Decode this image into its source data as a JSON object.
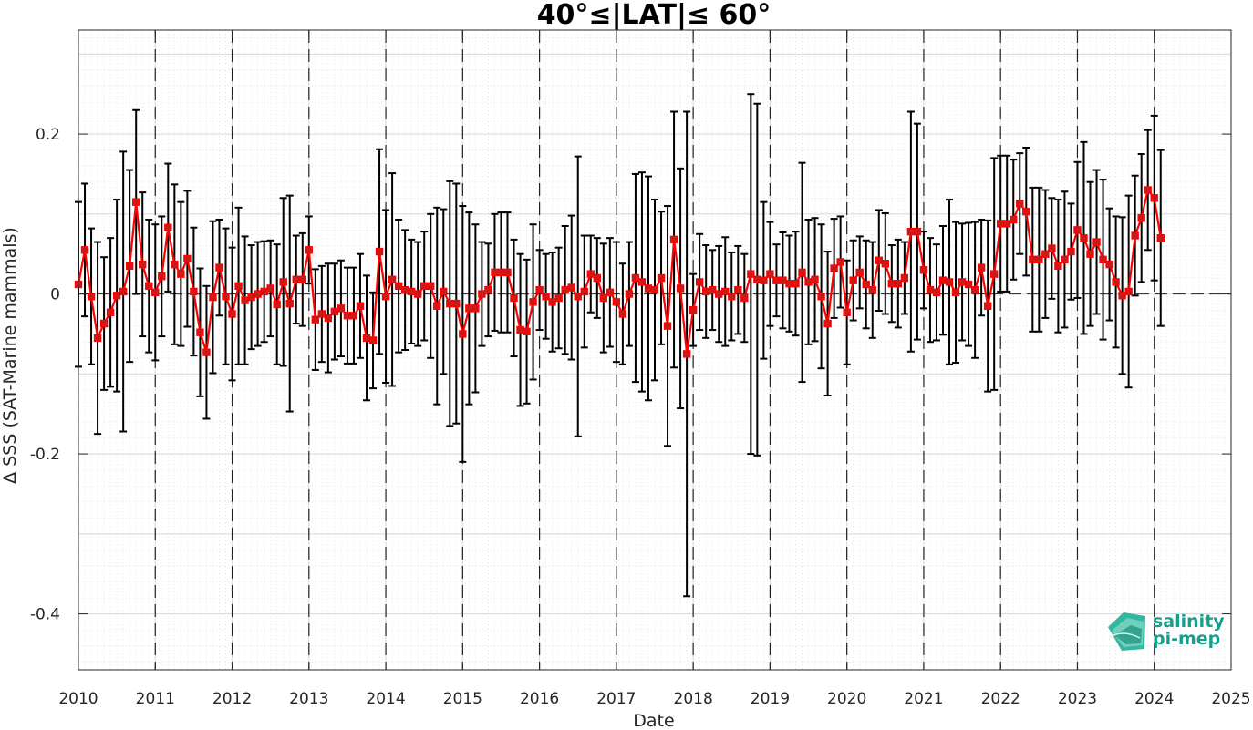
{
  "chart_data": {
    "type": "line",
    "title": "40°≤|LAT|≤ 60°",
    "xlabel": "Date",
    "ylabel": "Δ SSS (SAT-Marine mammals)",
    "xlim": [
      "2010-01-01",
      "2025-01-01"
    ],
    "ylim": [
      -0.47,
      0.33
    ],
    "x_ticks": [
      "2010",
      "2011",
      "2012",
      "2013",
      "2014",
      "2015",
      "2016",
      "2017",
      "2018",
      "2019",
      "2020",
      "2021",
      "2022",
      "2023",
      "2024",
      "2025"
    ],
    "y_ticks": [
      0.2,
      0,
      -0.2,
      -0.4
    ],
    "y_tick_labels": [
      "0.2",
      "0",
      "-0.2",
      "-0.4"
    ],
    "grid": true,
    "year_marker_style": "dashed vertical lines at each January",
    "zero_line_style": "dashed horizontal line at 0",
    "series": [
      {
        "style": "red line with square markers and black error bars",
        "x": [
          "2010-01",
          "2010-02",
          "2010-03",
          "2010-04",
          "2010-05",
          "2010-06",
          "2010-07",
          "2010-08",
          "2010-09",
          "2010-10",
          "2010-11",
          "2010-12",
          "2011-01",
          "2011-02",
          "2011-03",
          "2011-04",
          "2011-05",
          "2011-06",
          "2011-07",
          "2011-08",
          "2011-09",
          "2011-10",
          "2011-11",
          "2011-12",
          "2012-01",
          "2012-02",
          "2012-03",
          "2012-04",
          "2012-05",
          "2012-06",
          "2012-07",
          "2012-08",
          "2012-09",
          "2012-10",
          "2012-11",
          "2012-12",
          "2013-01",
          "2013-02",
          "2013-03",
          "2013-04",
          "2013-05",
          "2013-06",
          "2013-07",
          "2013-08",
          "2013-09",
          "2013-10",
          "2013-11",
          "2013-12",
          "2014-01",
          "2014-02",
          "2014-03",
          "2014-04",
          "2014-05",
          "2014-06",
          "2014-07",
          "2014-08",
          "2014-09",
          "2014-10",
          "2014-11",
          "2014-12",
          "2015-01",
          "2015-02",
          "2015-03",
          "2015-04",
          "2015-05",
          "2015-06",
          "2015-07",
          "2015-08",
          "2015-09",
          "2015-10",
          "2015-11",
          "2015-12",
          "2016-01",
          "2016-02",
          "2016-03",
          "2016-04",
          "2016-05",
          "2016-06",
          "2016-07",
          "2016-08",
          "2016-09",
          "2016-10",
          "2016-11",
          "2016-12",
          "2017-01",
          "2017-02",
          "2017-03",
          "2017-04",
          "2017-05",
          "2017-06",
          "2017-07",
          "2017-08",
          "2017-09",
          "2017-10",
          "2017-11",
          "2017-12",
          "2018-01",
          "2018-02",
          "2018-03",
          "2018-04",
          "2018-05",
          "2018-06",
          "2018-07",
          "2018-08",
          "2018-09",
          "2018-10",
          "2018-11",
          "2018-12",
          "2019-01",
          "2019-02",
          "2019-03",
          "2019-04",
          "2019-05",
          "2019-06",
          "2019-07",
          "2019-08",
          "2019-09",
          "2019-10",
          "2019-11",
          "2019-12",
          "2020-01",
          "2020-02",
          "2020-03",
          "2020-04",
          "2020-05",
          "2020-06",
          "2020-07",
          "2020-08",
          "2020-09",
          "2020-10",
          "2020-11",
          "2020-12",
          "2021-01",
          "2021-02",
          "2021-03",
          "2021-04",
          "2021-05",
          "2021-06",
          "2021-07",
          "2021-08",
          "2021-09",
          "2021-10",
          "2021-11",
          "2021-12",
          "2022-01",
          "2022-02",
          "2022-03",
          "2022-04",
          "2022-05",
          "2022-06",
          "2022-07",
          "2022-08",
          "2022-09",
          "2022-10",
          "2022-11",
          "2022-12",
          "2023-01",
          "2023-02",
          "2023-03",
          "2023-04",
          "2023-05",
          "2023-06",
          "2023-07",
          "2023-08",
          "2023-09",
          "2023-10",
          "2023-11",
          "2023-12",
          "2024-01",
          "2024-02"
        ],
        "y": [
          0.012,
          0.055,
          -0.003,
          -0.055,
          -0.037,
          -0.023,
          -0.002,
          0.003,
          0.035,
          0.115,
          0.037,
          0.01,
          0.002,
          0.022,
          0.083,
          0.037,
          0.025,
          0.044,
          0.003,
          -0.048,
          -0.073,
          -0.004,
          0.033,
          -0.003,
          -0.025,
          0.01,
          -0.008,
          -0.004,
          0.0,
          0.003,
          0.007,
          -0.013,
          0.015,
          -0.012,
          0.018,
          0.018,
          0.055,
          -0.032,
          -0.025,
          -0.03,
          -0.022,
          -0.018,
          -0.027,
          -0.027,
          -0.015,
          -0.055,
          -0.058,
          0.053,
          -0.003,
          0.018,
          0.01,
          0.005,
          0.003,
          0.0,
          0.01,
          0.01,
          -0.015,
          0.003,
          -0.012,
          -0.012,
          -0.05,
          -0.018,
          -0.018,
          0.0,
          0.005,
          0.027,
          0.027,
          0.027,
          -0.005,
          -0.045,
          -0.047,
          -0.01,
          0.005,
          -0.003,
          -0.01,
          -0.005,
          0.005,
          0.008,
          -0.003,
          0.003,
          0.025,
          0.02,
          -0.005,
          0.002,
          -0.01,
          -0.025,
          0.0,
          0.02,
          0.015,
          0.007,
          0.005,
          0.02,
          -0.04,
          0.068,
          0.007,
          -0.075,
          -0.02,
          0.015,
          0.003,
          0.005,
          0.0,
          0.003,
          -0.003,
          0.005,
          -0.005,
          0.025,
          0.018,
          0.017,
          0.025,
          0.017,
          0.017,
          0.013,
          0.013,
          0.027,
          0.015,
          0.018,
          -0.003,
          -0.037,
          0.032,
          0.04,
          -0.023,
          0.017,
          0.027,
          0.012,
          0.005,
          0.042,
          0.038,
          0.013,
          0.013,
          0.02,
          0.078,
          0.078,
          0.03,
          0.005,
          0.002,
          0.017,
          0.015,
          0.002,
          0.015,
          0.012,
          0.005,
          0.033,
          -0.015,
          0.025,
          0.088,
          0.088,
          0.093,
          0.113,
          0.103,
          0.043,
          0.043,
          0.05,
          0.057,
          0.035,
          0.043,
          0.053,
          0.08,
          0.07,
          0.05,
          0.065,
          0.043,
          0.037,
          0.015,
          -0.002,
          0.003,
          0.073,
          0.095,
          0.13,
          0.12,
          0.07
        ],
        "error": [
          0.103,
          0.083,
          0.085,
          0.12,
          0.083,
          0.093,
          0.12,
          0.175,
          0.12,
          0.115,
          0.09,
          0.083,
          0.085,
          0.075,
          0.08,
          0.1,
          0.09,
          0.085,
          0.08,
          0.08,
          0.083,
          0.095,
          0.06,
          0.085,
          0.083,
          0.098,
          0.08,
          0.065,
          0.065,
          0.063,
          0.06,
          0.075,
          0.105,
          0.135,
          0.055,
          0.058,
          0.042,
          0.063,
          0.06,
          0.068,
          0.06,
          0.06,
          0.06,
          0.06,
          0.065,
          0.078,
          0.06,
          0.128,
          0.108,
          0.133,
          0.083,
          0.075,
          0.065,
          0.065,
          0.068,
          0.09,
          0.123,
          0.103,
          0.153,
          0.15,
          0.16,
          0.12,
          0.105,
          0.065,
          0.058,
          0.073,
          0.075,
          0.075,
          0.073,
          0.095,
          0.09,
          0.097,
          0.05,
          0.053,
          0.062,
          0.063,
          0.08,
          0.09,
          0.175,
          0.07,
          0.048,
          0.05,
          0.068,
          0.068,
          0.075,
          0.063,
          0.065,
          0.13,
          0.137,
          0.14,
          0.113,
          0.083,
          0.15,
          0.16,
          0.15,
          0.303,
          0.045,
          0.06,
          0.058,
          0.05,
          0.06,
          0.068,
          0.055,
          0.055,
          0.055,
          0.225,
          0.22,
          0.098,
          0.065,
          0.045,
          0.06,
          0.06,
          0.065,
          0.137,
          0.078,
          0.077,
          0.09,
          0.09,
          0.062,
          0.057,
          0.065,
          0.05,
          0.045,
          0.055,
          0.06,
          0.063,
          0.063,
          0.048,
          0.055,
          0.045,
          0.15,
          0.135,
          0.048,
          0.065,
          0.06,
          0.068,
          0.103,
          0.088,
          0.073,
          0.077,
          0.085,
          0.06,
          0.107,
          0.145,
          0.085,
          0.085,
          0.075,
          0.063,
          0.08,
          0.09,
          0.09,
          0.08,
          0.063,
          0.083,
          0.085,
          0.06,
          0.085,
          0.12,
          0.09,
          0.09,
          0.1,
          0.07,
          0.082,
          0.098,
          0.12,
          0.075,
          0.08,
          0.075,
          0.103,
          0.11
        ]
      }
    ]
  },
  "logo": {
    "line1": "salinity",
    "line2": "pi-mep",
    "color": "#1a9e8c"
  },
  "colors": {
    "line": "#ff0000",
    "marker_face": "#cc1a1a",
    "errorbar": "#000000"
  }
}
